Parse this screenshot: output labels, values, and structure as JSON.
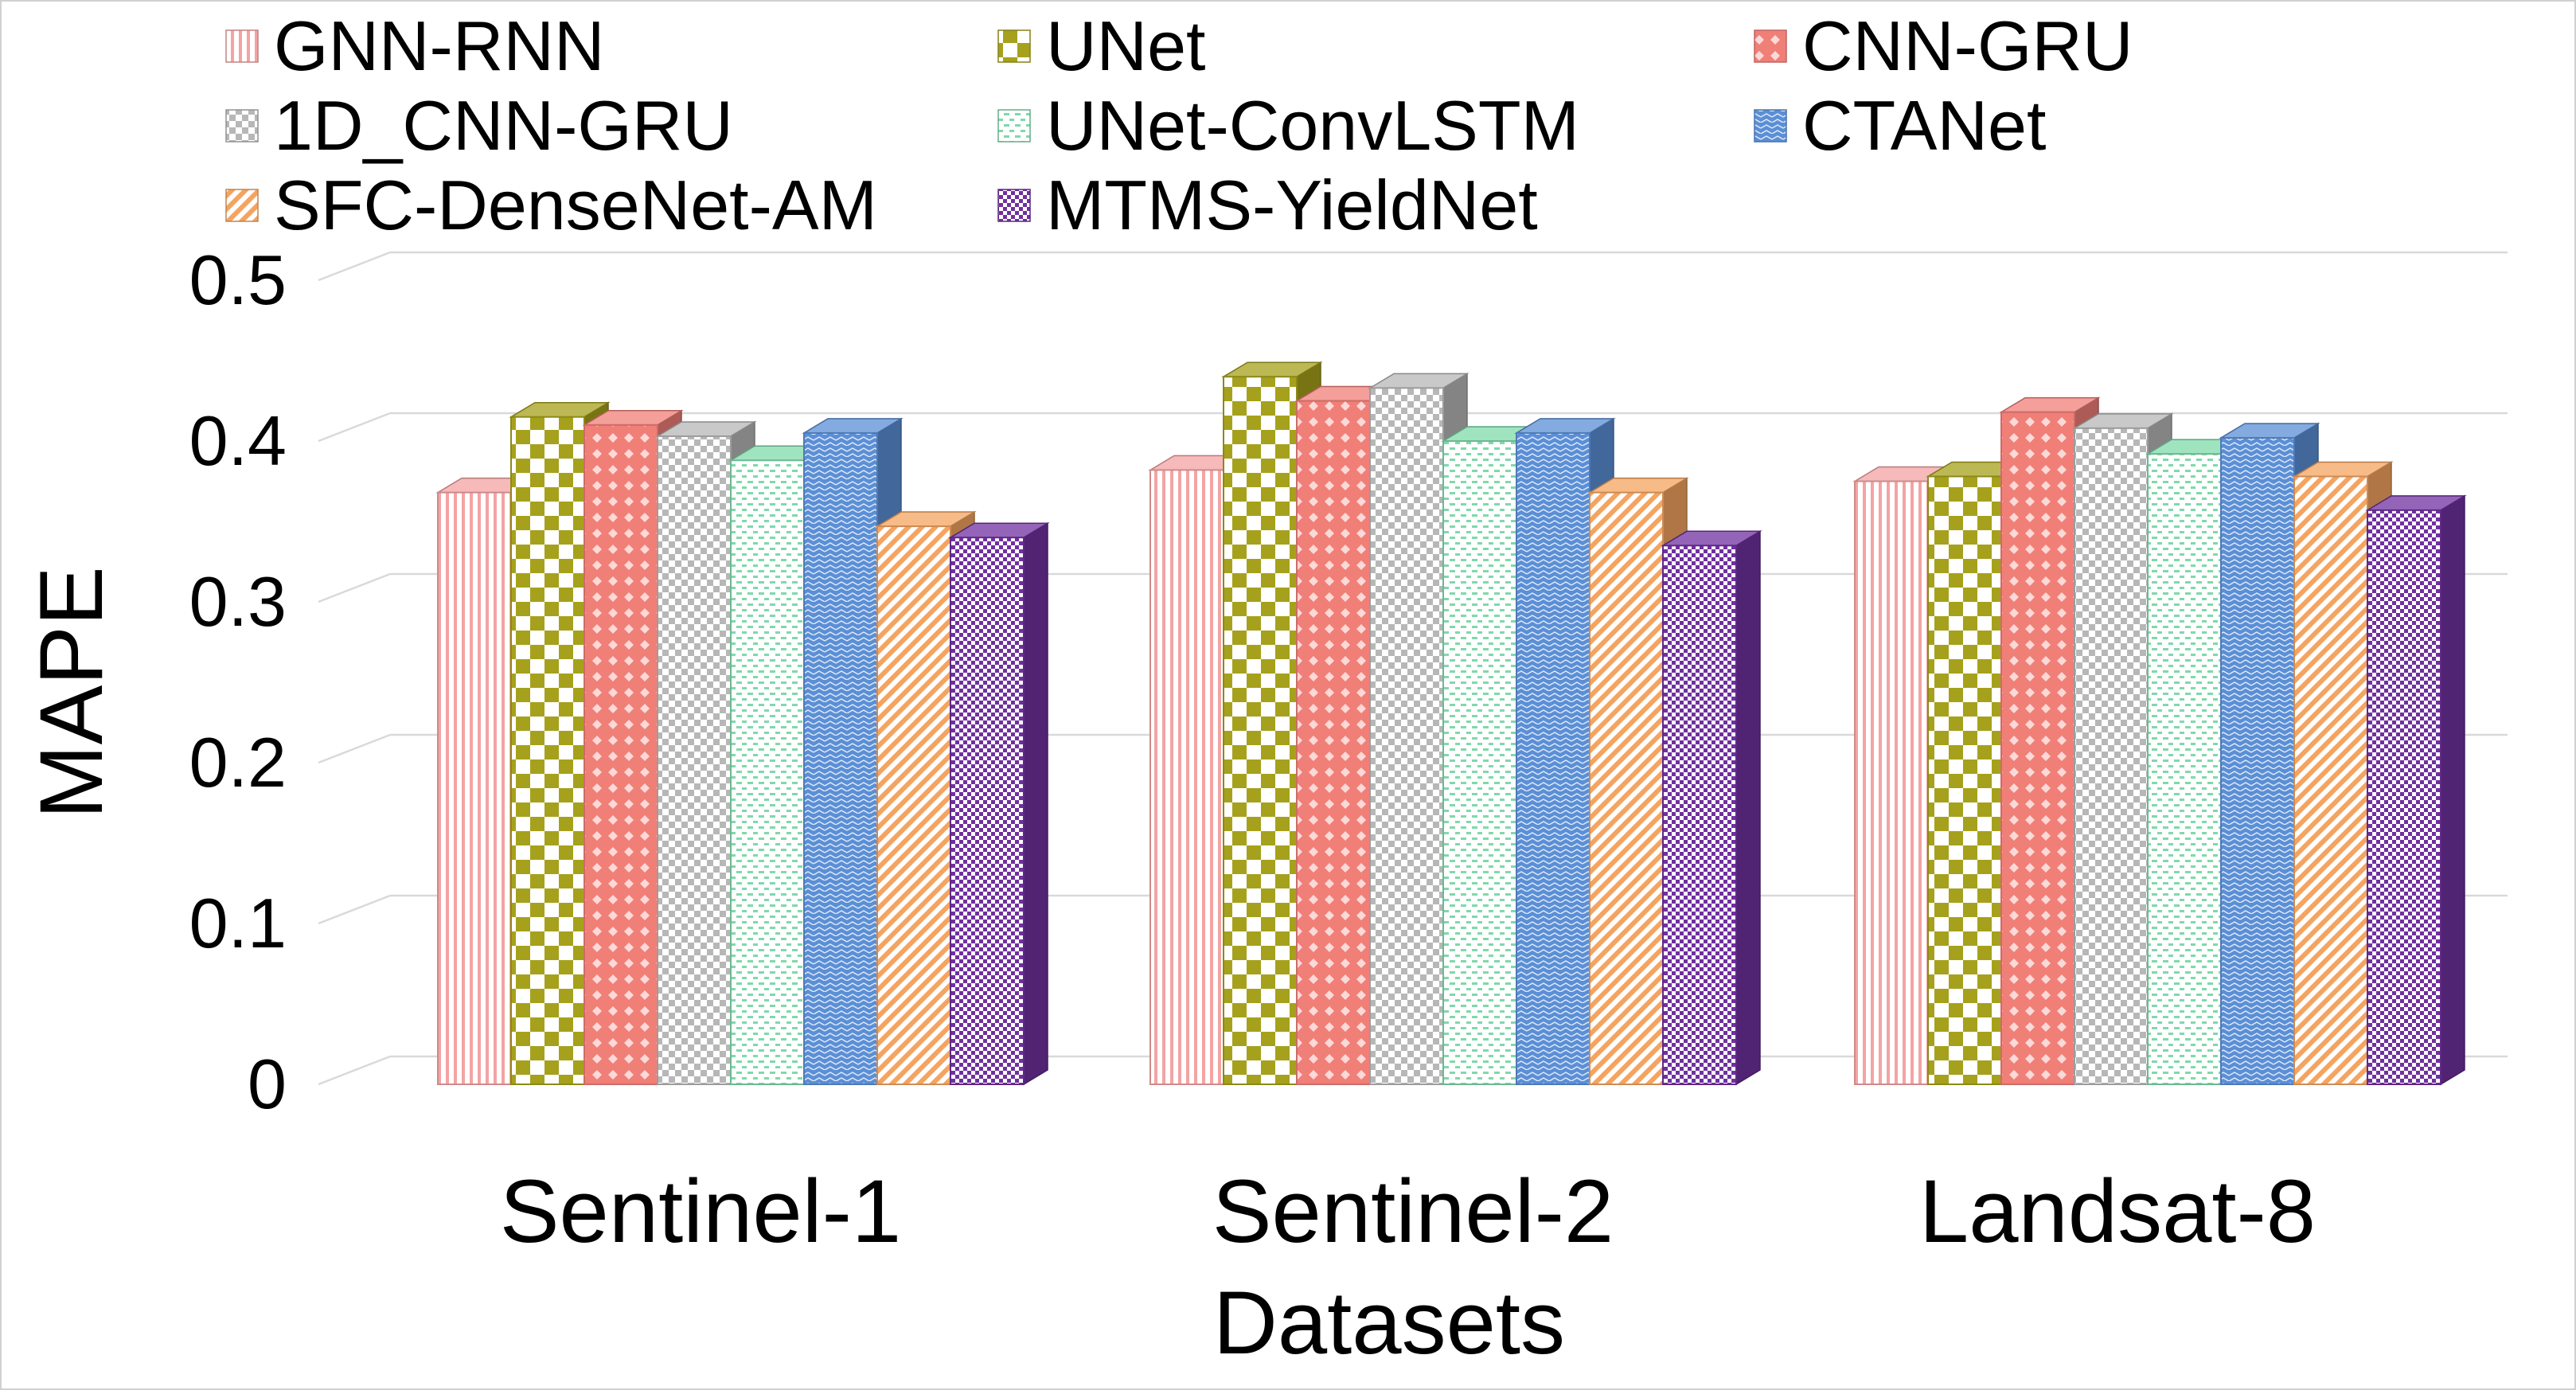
{
  "chart_data": {
    "type": "bar",
    "style": "3d-clustered-column",
    "title": "",
    "xlabel": "Datasets",
    "ylabel": "MAPE",
    "ylim": [
      0,
      0.5
    ],
    "yticks": [
      "0",
      "0.1",
      "0.2",
      "0.3",
      "0.4",
      "0.5"
    ],
    "categories": [
      "Sentinel-1",
      "Sentinel-2",
      "Landsat-8"
    ],
    "grid": true,
    "legend_position": "top",
    "series": [
      {
        "name": "GNN-RNN",
        "values": [
          0.368,
          0.382,
          0.375
        ],
        "color": "#f4a3a3",
        "pattern": "vertical-lines"
      },
      {
        "name": "UNet",
        "values": [
          0.415,
          0.44,
          0.378
        ],
        "color": "#a6a11c",
        "pattern": "large-checker"
      },
      {
        "name": "CNN-GRU",
        "values": [
          0.41,
          0.425,
          0.418
        ],
        "color": "#f07f78",
        "pattern": "diamond"
      },
      {
        "name": "1D_CNN-GRU",
        "values": [
          0.403,
          0.433,
          0.408
        ],
        "color": "#b7b7b7",
        "pattern": "small-checker"
      },
      {
        "name": "UNet-ConvLSTM",
        "values": [
          0.388,
          0.4,
          0.392
        ],
        "color": "#7fd9aa",
        "pattern": "dots"
      },
      {
        "name": "CTANet",
        "values": [
          0.405,
          0.405,
          0.402
        ],
        "color": "#5b8fd6",
        "pattern": "zigzag"
      },
      {
        "name": "SFC-DenseNet-AM",
        "values": [
          0.347,
          0.368,
          0.378
        ],
        "color": "#f4a460",
        "pattern": "diagonal-lines"
      },
      {
        "name": "MTMS-YieldNet",
        "values": [
          0.34,
          0.335,
          0.357
        ],
        "color": "#7030a0",
        "pattern": "fine-checker"
      }
    ]
  }
}
